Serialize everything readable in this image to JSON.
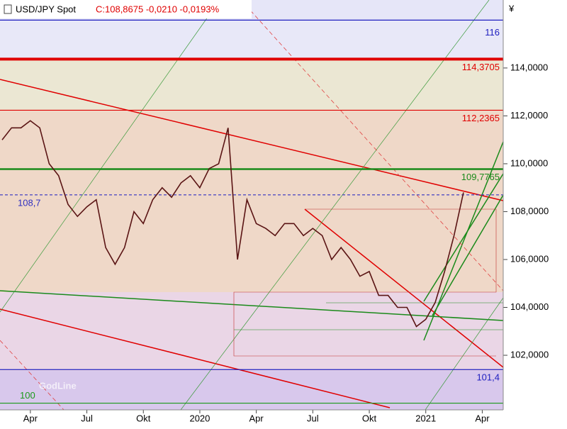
{
  "chart_data": {
    "type": "line",
    "title": "USD/JPY Spot",
    "quote": "C:108,8675 -0,0210 -0,0193%",
    "currency": "¥",
    "categories": [
      null,
      null,
      null,
      "Apr",
      null,
      null,
      null,
      null,
      null,
      "Jul",
      null,
      null,
      null,
      null,
      null,
      "Okt",
      null,
      null,
      null,
      null,
      null,
      "2020",
      null,
      null,
      null,
      null,
      null,
      "Apr",
      null,
      null,
      null,
      null,
      null,
      "Jul",
      null,
      null,
      null,
      null,
      null,
      "Okt",
      null,
      null,
      null,
      null,
      null,
      "2021",
      null,
      null,
      null,
      null,
      null,
      "Apr",
      null,
      null
    ],
    "series": [
      {
        "name": "USD/JPY Spot",
        "color": "#5a1414",
        "values": [
          111.0,
          111.5,
          111.5,
          111.8,
          111.5,
          110.0,
          109.5,
          108.3,
          107.8,
          108.2,
          108.5,
          106.5,
          105.8,
          106.5,
          108.0,
          107.5,
          108.5,
          109.0,
          108.6,
          109.2,
          109.5,
          109.0,
          109.8,
          110.0,
          111.5,
          106.0,
          108.5,
          107.5,
          107.3,
          107.0,
          107.5,
          107.5,
          107.0,
          107.3,
          107.0,
          106.0,
          106.5,
          106.0,
          105.3,
          105.5,
          104.5,
          104.5,
          104.0,
          104.0,
          103.2,
          103.5,
          104.2,
          105.5,
          107.0,
          108.8,
          null,
          null,
          null,
          null
        ]
      }
    ],
    "ylim": [
      99.72,
      116.84
    ],
    "yticks": [
      {
        "value": 102,
        "label": "102,0000"
      },
      {
        "value": 104,
        "label": "104,0000"
      },
      {
        "value": 106,
        "label": "106,0000"
      },
      {
        "value": 108,
        "label": "108,0000"
      },
      {
        "value": 110,
        "label": "110,0000"
      },
      {
        "value": 112,
        "label": "112,0000"
      },
      {
        "value": 114,
        "label": "114,0000"
      }
    ],
    "levels": [
      {
        "value": 116,
        "label": "116",
        "color": "#2020c0"
      },
      {
        "value": 114.3705,
        "label": "114,3705",
        "color": "#e00000"
      },
      {
        "value": 112.2365,
        "label": "112,2365",
        "color": "#e00000"
      },
      {
        "value": 109.7765,
        "label": "109,7765",
        "color": "#1a8a1a"
      },
      {
        "value": 108.7,
        "label": "108,7",
        "color": "#3030c0"
      },
      {
        "value": 101.4,
        "label": "101,4",
        "color": "#2020c0"
      },
      {
        "value": 100,
        "label": "100",
        "color": "#1a9a1a"
      }
    ]
  }
}
